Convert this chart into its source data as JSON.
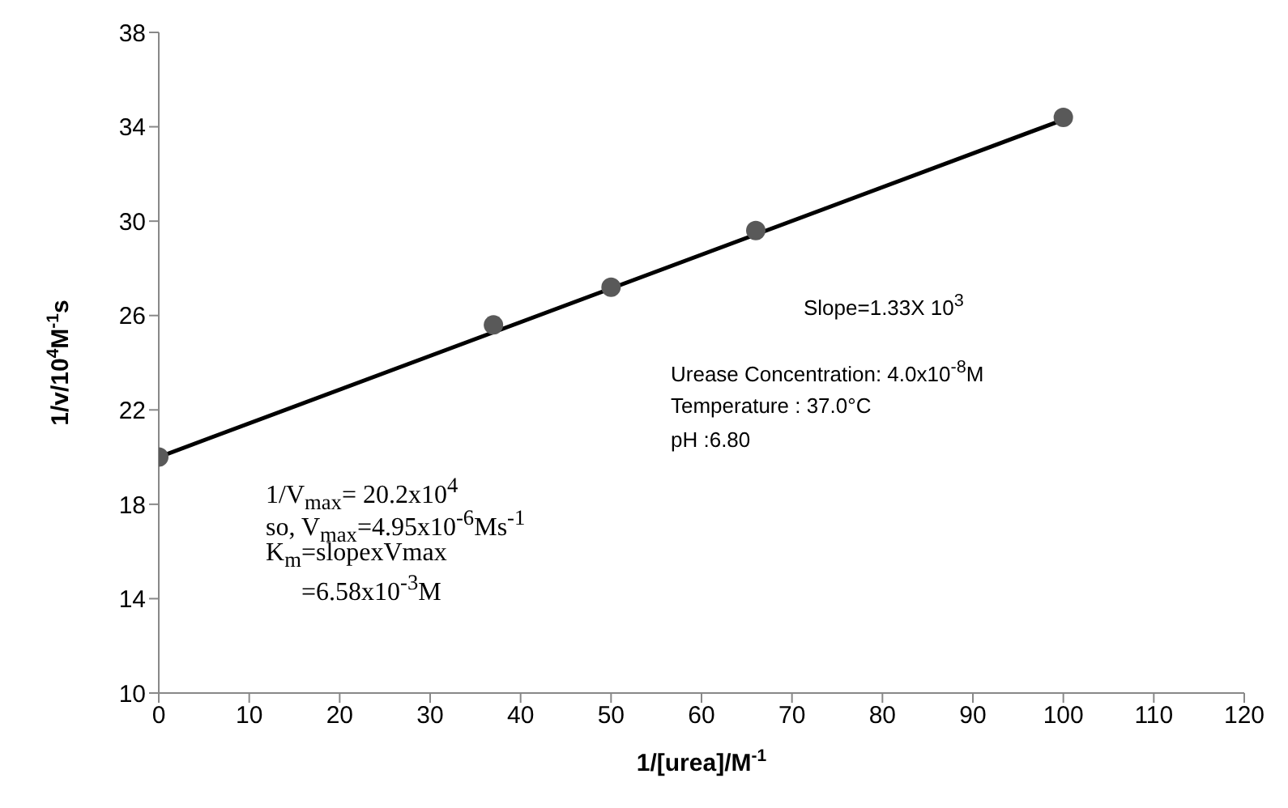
{
  "chart_data": {
    "type": "scatter",
    "xlabel": "1/[urea]/M$^{-1}$",
    "ylabel": "1/v/10$^{4}$M$^{-1}$s",
    "xlim": [
      0,
      120
    ],
    "xticks": [
      0,
      10,
      20,
      30,
      40,
      50,
      60,
      70,
      80,
      90,
      100,
      110,
      120
    ],
    "ylim": [
      10,
      38
    ],
    "yticks": [
      10,
      14,
      18,
      22,
      26,
      30,
      34,
      38
    ],
    "grid": false,
    "legend": false,
    "marker": "circle",
    "series": [
      {
        "color": "#595959",
        "x": [
          0,
          37,
          50,
          66,
          100
        ],
        "values": [
          20,
          25.6,
          27.2,
          29.6,
          34.4
        ]
      },
      {
        "type": "line",
        "color": "#000000",
        "x": [
          0,
          100
        ],
        "values": [
          20,
          34.3
        ],
        "marker": "none"
      }
    ],
    "annotations": [
      "Slope=1.33X 10$^{3}$",
      "Urease Concentration: 4.0x10$^{-8}$M",
      "Temperature : 37.0°C",
      "pH :6.80",
      "1/V$_{max}$= 20.2x10$^{4}$",
      "so, V$_{max}$=4.95x10$^{-6}$Ms$^{-1}$",
      "K$_{m}$=slopexVmax",
      "=6.58x10$^{-3}$M"
    ]
  }
}
